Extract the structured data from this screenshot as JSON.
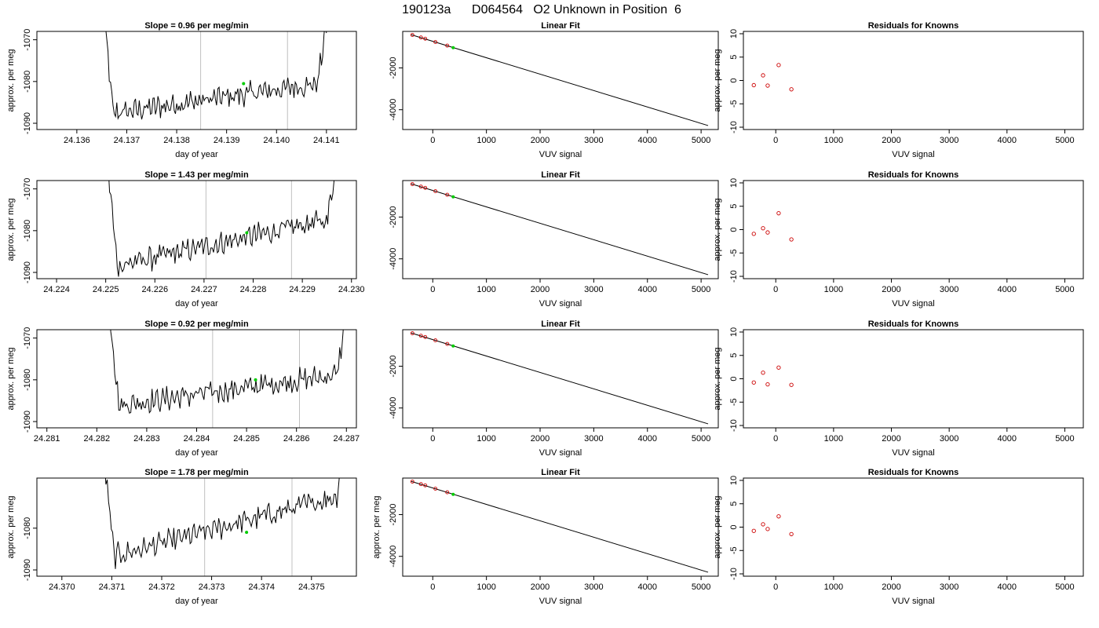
{
  "title": "190123a      D064564   O2 Unknown in Position  6",
  "colors": {
    "trace": "#000000",
    "marker": "#00cc00",
    "residual": "#cc0000",
    "guide": "#c0c0c0"
  },
  "chart_data": [
    {
      "type": "line",
      "title": "Slope =  0.96  per meg/min",
      "xlabel": "day of year",
      "ylabel": "approx. per meg",
      "xlim": [
        24.1352,
        24.1416
      ],
      "ylim": [
        -1091.5,
        -1068
      ],
      "xticks": [
        "24.136",
        "24.137",
        "24.138",
        "24.139",
        "24.140",
        "24.141"
      ],
      "yticks": [
        "-1090",
        "-1080",
        "-1070"
      ],
      "ytick_values": [
        -1090,
        -1080,
        -1070
      ],
      "start": 24.1365,
      "end": 24.141,
      "vlines": [
        24.13848,
        24.14022
      ],
      "base": -1088,
      "slope_per_unit": 0.96,
      "marker": [
        24.13934,
        -1080.5
      ]
    },
    {
      "type": "line",
      "title": "Slope =  1.43  per meg/min",
      "xlabel": "day of year",
      "ylabel": "approx. per meg",
      "xlim": [
        24.2236,
        24.2301
      ],
      "ylim": [
        -1091.5,
        -1068
      ],
      "xticks": [
        "24.224",
        "24.225",
        "24.226",
        "24.227",
        "24.228",
        "24.229",
        "24.230"
      ],
      "yticks": [
        "-1090",
        "-1080",
        "-1070"
      ],
      "ytick_values": [
        -1090,
        -1080,
        -1070
      ],
      "start": 24.225,
      "end": 24.2297,
      "vlines": [
        24.22704,
        24.22878
      ],
      "base": -1089,
      "slope_per_unit": 1.43,
      "marker": [
        24.22787,
        -1080.5
      ]
    },
    {
      "type": "line",
      "title": "Slope =  0.92  per meg/min",
      "xlabel": "day of year",
      "ylabel": "approx. per meg",
      "xlim": [
        24.2808,
        24.2872
      ],
      "ylim": [
        -1091.5,
        -1068
      ],
      "xticks": [
        "24.281",
        "24.282",
        "24.283",
        "24.284",
        "24.285",
        "24.286",
        "24.287"
      ],
      "yticks": [
        "-1090",
        "-1080",
        "-1070"
      ],
      "ytick_values": [
        -1090,
        -1080,
        -1070
      ],
      "start": 24.2822,
      "end": 24.287,
      "vlines": [
        24.28432,
        24.28606
      ],
      "base": -1086.5,
      "slope_per_unit": 0.92,
      "marker": [
        24.28518,
        -1080.0
      ]
    },
    {
      "type": "line",
      "title": "Slope =  1.78  per meg/min",
      "xlabel": "day of year",
      "ylabel": "approx. per meg",
      "xlim": [
        24.3695,
        24.3759
      ],
      "ylim": [
        -1091.5,
        -1068
      ],
      "xticks": [
        "24.370",
        "24.371",
        "24.372",
        "24.373",
        "24.374",
        "24.375"
      ],
      "yticks": [
        "-1090",
        "-1080"
      ],
      "ytick_values": [
        -1090,
        -1080
      ],
      "start": 24.3708,
      "end": 24.3757,
      "vlines": [
        24.37286,
        24.37461
      ],
      "base": -1087.5,
      "slope_per_unit": 1.78,
      "marker": [
        24.3737,
        -1081.0
      ]
    },
    {
      "type": "line",
      "title": "Linear Fit",
      "xlabel": "VUV signal",
      "ylabel": "",
      "xlim": [
        -560,
        5320
      ],
      "ylim": [
        -4950,
        -250
      ],
      "xticks": [
        "0",
        "1000",
        "2000",
        "3000",
        "4000",
        "5000"
      ],
      "xtick_values": [
        0,
        1000,
        2000,
        3000,
        4000,
        5000
      ],
      "yticks": [
        "-4000",
        "-2000"
      ],
      "ytick_values": [
        -4000,
        -2000
      ],
      "line": [
        [
          -400,
          -410
        ],
        [
          5130,
          -4760
        ]
      ],
      "points": [
        [
          -380,
          -420
        ],
        [
          -220,
          -540
        ],
        [
          -140,
          -600
        ],
        [
          50,
          -760
        ],
        [
          270,
          -930
        ]
      ],
      "marker": [
        380,
        -1030
      ]
    },
    {
      "type": "line",
      "title": "Linear Fit",
      "xlabel": "VUV signal",
      "ylabel": "",
      "xlim": [
        -560,
        5320
      ],
      "ylim": [
        -4950,
        -250
      ],
      "xticks": [
        "0",
        "1000",
        "2000",
        "3000",
        "4000",
        "5000"
      ],
      "xtick_values": [
        0,
        1000,
        2000,
        3000,
        4000,
        5000
      ],
      "yticks": [
        "-4000",
        "-2000"
      ],
      "ytick_values": [
        -4000,
        -2000
      ],
      "line": [
        [
          -400,
          -410
        ],
        [
          5130,
          -4760
        ]
      ],
      "points": [
        [
          -380,
          -420
        ],
        [
          -220,
          -540
        ],
        [
          -140,
          -600
        ],
        [
          50,
          -760
        ],
        [
          270,
          -930
        ]
      ],
      "marker": [
        380,
        -1030
      ]
    },
    {
      "type": "line",
      "title": "Linear Fit",
      "xlabel": "VUV signal",
      "ylabel": "",
      "xlim": [
        -560,
        5320
      ],
      "ylim": [
        -4950,
        -250
      ],
      "xticks": [
        "0",
        "1000",
        "2000",
        "3000",
        "4000",
        "5000"
      ],
      "xtick_values": [
        0,
        1000,
        2000,
        3000,
        4000,
        5000
      ],
      "yticks": [
        "-4000",
        "-2000"
      ],
      "ytick_values": [
        -4000,
        -2000
      ],
      "line": [
        [
          -400,
          -410
        ],
        [
          5130,
          -4760
        ]
      ],
      "points": [
        [
          -380,
          -420
        ],
        [
          -220,
          -540
        ],
        [
          -140,
          -600
        ],
        [
          50,
          -760
        ],
        [
          270,
          -930
        ]
      ],
      "marker": [
        380,
        -1030
      ]
    },
    {
      "type": "line",
      "title": "Linear Fit",
      "xlabel": "VUV signal",
      "ylabel": "approx. per meg",
      "xlim": [
        -560,
        5320
      ],
      "ylim": [
        -4950,
        -250
      ],
      "xticks": [
        "0",
        "1000",
        "2000",
        "3000",
        "4000",
        "5000"
      ],
      "xtick_values": [
        0,
        1000,
        2000,
        3000,
        4000,
        5000
      ],
      "yticks": [
        "-4000",
        "-2000"
      ],
      "ytick_values": [
        -4000,
        -2000
      ],
      "line": [
        [
          -400,
          -410
        ],
        [
          5130,
          -4760
        ]
      ],
      "points": [
        [
          -380,
          -420
        ],
        [
          -220,
          -540
        ],
        [
          -140,
          -600
        ],
        [
          50,
          -760
        ],
        [
          270,
          -930
        ]
      ],
      "marker": [
        380,
        -1030
      ]
    },
    {
      "type": "scatter",
      "title": "Residuals for Knowns",
      "xlabel": "VUV signal",
      "ylabel": "approx. per meg",
      "xlim": [
        -560,
        5320
      ],
      "ylim": [
        -10.5,
        10.5
      ],
      "xticks": [
        "0",
        "1000",
        "2000",
        "3000",
        "4000",
        "5000"
      ],
      "xtick_values": [
        0,
        1000,
        2000,
        3000,
        4000,
        5000
      ],
      "yticks": [
        "-10",
        "-5",
        "0",
        "5",
        "10"
      ],
      "ytick_values": [
        -10,
        -5,
        0,
        5,
        10
      ],
      "points": [
        [
          -380,
          -1.0
        ],
        [
          -220,
          1.1
        ],
        [
          -140,
          -1.1
        ],
        [
          50,
          3.3
        ],
        [
          270,
          -1.9
        ]
      ]
    },
    {
      "type": "scatter",
      "title": "Residuals for Knowns",
      "xlabel": "VUV signal",
      "ylabel": "approx. per meg",
      "xlim": [
        -560,
        5320
      ],
      "ylim": [
        -10.5,
        10.5
      ],
      "xticks": [
        "0",
        "1000",
        "2000",
        "3000",
        "4000",
        "5000"
      ],
      "xtick_values": [
        0,
        1000,
        2000,
        3000,
        4000,
        5000
      ],
      "yticks": [
        "-10",
        "-5",
        "0",
        "5",
        "10"
      ],
      "ytick_values": [
        -10,
        -5,
        0,
        5,
        10
      ],
      "points": [
        [
          -380,
          -0.9
        ],
        [
          -220,
          0.3
        ],
        [
          -140,
          -0.6
        ],
        [
          50,
          3.5
        ],
        [
          270,
          -2.1
        ]
      ]
    },
    {
      "type": "scatter",
      "title": "Residuals for Knowns",
      "xlabel": "VUV signal",
      "ylabel": "approx. per meg",
      "xlim": [
        -560,
        5320
      ],
      "ylim": [
        -10.5,
        10.5
      ],
      "xticks": [
        "0",
        "1000",
        "2000",
        "3000",
        "4000",
        "5000"
      ],
      "xtick_values": [
        0,
        1000,
        2000,
        3000,
        4000,
        5000
      ],
      "yticks": [
        "-10",
        "-5",
        "0",
        "5",
        "10"
      ],
      "ytick_values": [
        -10,
        -5,
        0,
        5,
        10
      ],
      "points": [
        [
          -380,
          -0.8
        ],
        [
          -220,
          1.3
        ],
        [
          -140,
          -1.2
        ],
        [
          50,
          2.4
        ],
        [
          270,
          -1.3
        ]
      ]
    },
    {
      "type": "scatter",
      "title": "Residuals for Knowns",
      "xlabel": "VUV signal",
      "ylabel": "approx. per meg",
      "xlim": [
        -560,
        5320
      ],
      "ylim": [
        -10.5,
        10.5
      ],
      "xticks": [
        "0",
        "1000",
        "2000",
        "3000",
        "4000",
        "5000"
      ],
      "xtick_values": [
        0,
        1000,
        2000,
        3000,
        4000,
        5000
      ],
      "yticks": [
        "-10",
        "-5",
        "0",
        "5",
        "10"
      ],
      "ytick_values": [
        -10,
        -5,
        0,
        5,
        10
      ],
      "points": [
        [
          -380,
          -0.8
        ],
        [
          -220,
          0.6
        ],
        [
          -140,
          -0.4
        ],
        [
          50,
          2.3
        ],
        [
          270,
          -1.5
        ]
      ]
    }
  ]
}
